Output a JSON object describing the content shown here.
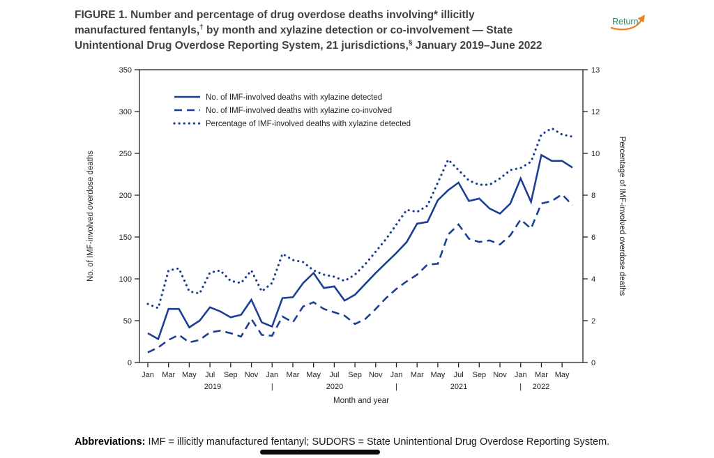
{
  "header": {
    "title_lines": [
      [
        {
          "t": "FIGURE 1. Number and percentage of drug overdose deaths involving* illicitly"
        }
      ],
      [
        {
          "t": "manufactured fentanyls,"
        },
        {
          "t": "†",
          "sup": true
        },
        {
          "t": " by month and xylazine detection or co-involvement — State"
        }
      ],
      [
        {
          "t": "Unintentional Drug Overdose Reporting System, 21 jurisdictions,"
        },
        {
          "t": "§",
          "sup": true
        },
        {
          "t": " January 2019–June 2022"
        }
      ]
    ],
    "return_label": "Return"
  },
  "chart_data": {
    "type": "line",
    "title": "Number and percentage of drug overdose deaths involving illicitly manufactured fentanyls, by month and xylazine detection or co-involvement",
    "x": [
      "Jan 2019",
      "Feb 2019",
      "Mar 2019",
      "Apr 2019",
      "May 2019",
      "Jun 2019",
      "Jul 2019",
      "Aug 2019",
      "Sep 2019",
      "Oct 2019",
      "Nov 2019",
      "Dec 2019",
      "Jan 2020",
      "Feb 2020",
      "Mar 2020",
      "Apr 2020",
      "May 2020",
      "Jun 2020",
      "Jul 2020",
      "Aug 2020",
      "Sep 2020",
      "Oct 2020",
      "Nov 2020",
      "Dec 2020",
      "Jan 2021",
      "Feb 2021",
      "Mar 2021",
      "Apr 2021",
      "May 2021",
      "Jun 2021",
      "Jul 2021",
      "Aug 2021",
      "Sep 2021",
      "Oct 2021",
      "Nov 2021",
      "Dec 2021",
      "Jan 2022",
      "Feb 2022",
      "Mar 2022",
      "Apr 2022",
      "May 2022",
      "Jun 2022"
    ],
    "series": [
      {
        "name": "No. of IMF-involved deaths with xylazine detected",
        "style": "solid",
        "axis": "left",
        "values": [
          35,
          28,
          64,
          64,
          42,
          50,
          66,
          61,
          54,
          57,
          75,
          48,
          43,
          77,
          78,
          95,
          107,
          89,
          91,
          74,
          81,
          94,
          107,
          119,
          131,
          144,
          166,
          168,
          194,
          206,
          215,
          193,
          196,
          184,
          178,
          190,
          220,
          192,
          248,
          241,
          241,
          233
        ]
      },
      {
        "name": "No. of IMF-involved deaths with xylazine co-involved",
        "style": "dashed",
        "axis": "left",
        "values": [
          12,
          18,
          27,
          33,
          24,
          27,
          36,
          38,
          35,
          31,
          52,
          33,
          32,
          55,
          48,
          67,
          72,
          64,
          60,
          56,
          46,
          52,
          64,
          77,
          88,
          97,
          105,
          117,
          118,
          153,
          165,
          148,
          144,
          146,
          141,
          152,
          171,
          160,
          190,
          193,
          201,
          188
        ]
      },
      {
        "name": "Percentage of IMF-involved deaths with xylazine detected",
        "style": "dotted",
        "axis": "right",
        "values": [
          2.8,
          2.6,
          4.4,
          4.5,
          3.4,
          3.3,
          4.3,
          4.4,
          3.9,
          3.8,
          4.4,
          3.4,
          3.8,
          5.2,
          4.9,
          4.8,
          4.4,
          4.2,
          4.1,
          3.9,
          4.2,
          4.7,
          5.3,
          5.9,
          6.6,
          7.3,
          7.2,
          7.5,
          8.6,
          9.7,
          9.2,
          8.7,
          8.5,
          8.5,
          8.8,
          9.2,
          9.3,
          9.6,
          10.9,
          11.2,
          10.9,
          10.8
        ]
      }
    ],
    "left_axis": {
      "label": "No. of IMF-involved overdose deaths",
      "ticks": [
        0,
        50,
        100,
        150,
        200,
        250,
        300,
        350
      ],
      "range": [
        0,
        350
      ]
    },
    "right_axis": {
      "label": "Percentage of IMF-involved overdose deaths",
      "tick_labels": [
        "0",
        "2",
        "4",
        "6",
        "8",
        "10",
        "12",
        "13"
      ],
      "range": [
        0,
        13
      ]
    },
    "x_axis": {
      "label": "Month and year",
      "tick_labels": [
        "Jan",
        "Mar",
        "May",
        "Jul",
        "Sep",
        "Nov",
        "Jan",
        "Mar",
        "May",
        "Jul",
        "Sep",
        "Nov",
        "Jan",
        "Mar",
        "May",
        "Jul",
        "Sep",
        "Nov",
        "Jan",
        "Mar",
        "May"
      ],
      "year_labels": [
        "2019",
        "2020",
        "2021",
        "2022"
      ],
      "year_separator": "|"
    },
    "legend_position": "top-left-inside",
    "grid": false,
    "line_color": "#1c3f94"
  },
  "footer": {
    "abbr_bold": "Abbreviations:",
    "abbr_text": " IMF = illicitly manufactured fentanyl; SUDORS = State Unintentional Drug Overdose Reporting System."
  },
  "colors": {
    "line_blue": "#1c3f94",
    "text": "#231f20",
    "title_gray": "#414042",
    "return_teal": "#2e8673",
    "return_orange": "#f08221",
    "bar_black": "#0b0b0b"
  }
}
